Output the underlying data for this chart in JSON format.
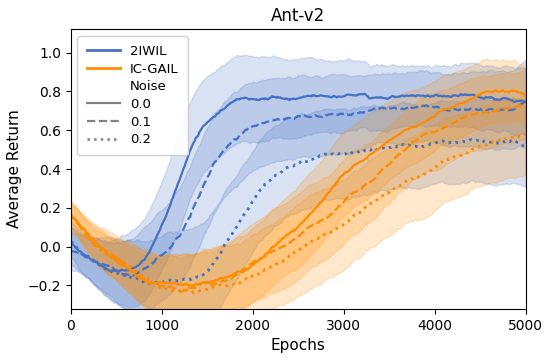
{
  "title": "Ant-v2",
  "xlabel": "Epochs",
  "ylabel": "Average Return",
  "xlim": [
    0,
    5000
  ],
  "ylim": [
    -0.32,
    1.12
  ],
  "yticks": [
    -0.2,
    0.0,
    0.2,
    0.4,
    0.6,
    0.8,
    1.0
  ],
  "xticks": [
    0,
    1000,
    2000,
    3000,
    4000,
    5000
  ],
  "color_2iwil": "#4472C4",
  "color_icgail": "#FF8C00",
  "fill_alpha": 0.2,
  "figsize": [
    5.5,
    3.6
  ],
  "dpi": 100
}
